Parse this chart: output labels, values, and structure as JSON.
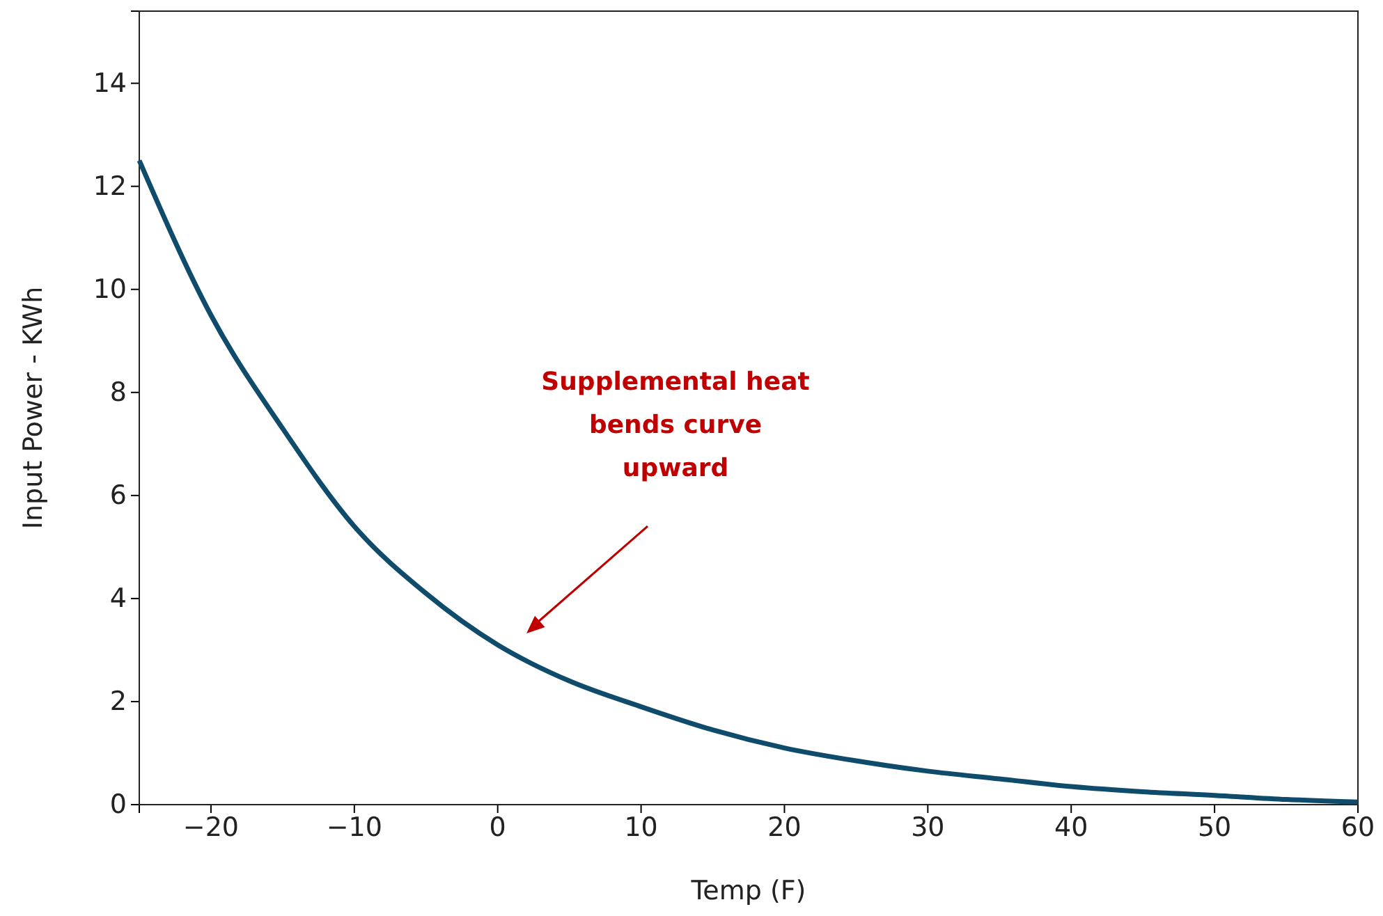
{
  "chart_data": {
    "type": "line",
    "xlabel": "Temp (F)",
    "ylabel": "Input Power - KWh",
    "x": [
      -25,
      -20,
      -15,
      -10,
      -5,
      0,
      5,
      10,
      15,
      20,
      25,
      30,
      35,
      40,
      45,
      50,
      55,
      60
    ],
    "series": [
      {
        "color": "#0f4c6b",
        "values": [
          12.5,
          9.5,
          7.3,
          5.4,
          4.1,
          3.1,
          2.4,
          1.9,
          1.45,
          1.1,
          0.85,
          0.65,
          0.5,
          0.35,
          0.25,
          0.18,
          0.1,
          0.05
        ]
      }
    ],
    "xlim": [
      -25,
      60
    ],
    "xticks": [
      -20,
      -10,
      0,
      10,
      20,
      30,
      40,
      50,
      60
    ],
    "ylim": [
      0,
      15.4
    ],
    "yticks": [
      0,
      2,
      4,
      6,
      8,
      10,
      12,
      14
    ],
    "grid": false,
    "marker": "none",
    "line_style": "solid",
    "annotations": [
      "Supplemental heat\nbends curve\nupward"
    ]
  }
}
